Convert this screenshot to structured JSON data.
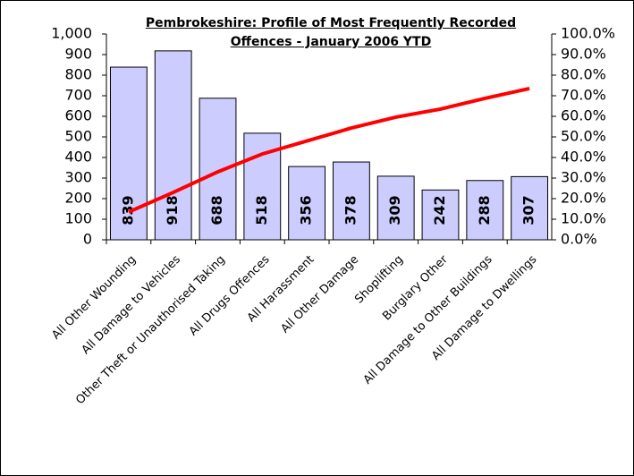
{
  "chart_data": {
    "type": "bar",
    "title": "Pembrokeshire: Profile of Most Frequently Recorded Offences - January 2006 YTD",
    "categories": [
      "All Other Wounding",
      "All Damage to Vehicles",
      "Other Theft or Unauthorised Taking",
      "All Drugs Offences",
      "All Harassment",
      "All Other Damage",
      "Shoplifting",
      "Burglary Other",
      "All Damage to Other Buildings",
      "All Damage to Dwellings"
    ],
    "series": [
      {
        "type": "bar",
        "color": "#ccccff",
        "values": [
          839,
          918,
          688,
          518,
          356,
          378,
          309,
          242,
          288,
          307
        ]
      },
      {
        "type": "line",
        "color": "#ff0000",
        "axis": "y2",
        "values": [
          13.5,
          23,
          33,
          41.7,
          48,
          54.3,
          59.6,
          63.5,
          68.7,
          73.5
        ]
      }
    ],
    "ylim": [
      0,
      1000
    ],
    "yticks": [
      0,
      100,
      200,
      300,
      400,
      500,
      600,
      700,
      800,
      900,
      {
        "value": 1000,
        "label": "1,000"
      }
    ],
    "y2lim": [
      0,
      100
    ],
    "y2ticks": [
      {
        "value": 0,
        "label": "0.0%"
      },
      {
        "value": 10,
        "label": "10.0%"
      },
      {
        "value": 20,
        "label": "20.0%"
      },
      {
        "value": 30,
        "label": "30.0%"
      },
      {
        "value": 40,
        "label": "40.0%"
      },
      {
        "value": 50,
        "label": "50.0%"
      },
      {
        "value": 60,
        "label": "60.0%"
      },
      {
        "value": 70,
        "label": "70.0%"
      },
      {
        "value": 80,
        "label": "80.0%"
      },
      {
        "value": 90,
        "label": "90.0%"
      },
      {
        "value": 100,
        "label": "100.0%"
      }
    ]
  }
}
